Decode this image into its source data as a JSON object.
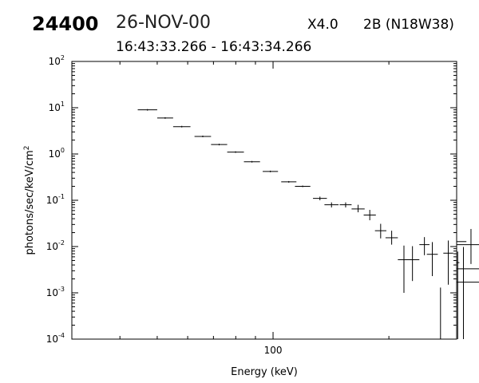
{
  "header": {
    "event_id": "24400",
    "date": "26-NOV-00",
    "goes_class": "X4.0",
    "flare": "2B (N18W38)",
    "time_range": "16:43:33.266 - 16:43:34.266"
  },
  "chart_data": {
    "type": "scatter",
    "style": "error-bars",
    "xlabel": "Energy (keV)",
    "ylabel": "photons/sec/keV/cm",
    "ylabel_superscript": "2",
    "x_scale": "log",
    "y_scale": "log",
    "xlim": [
      30,
      300
    ],
    "ylim": [
      0.0001,
      100
    ],
    "x_tick_labels": [
      {
        "value": 100,
        "label": "100"
      }
    ],
    "y_tick_labels": [
      {
        "value": 0.0001,
        "base": "10",
        "exp": "-4"
      },
      {
        "value": 0.001,
        "base": "10",
        "exp": "-3"
      },
      {
        "value": 0.01,
        "base": "10",
        "exp": "-2"
      },
      {
        "value": 0.1,
        "base": "10",
        "exp": "-1"
      },
      {
        "value": 1,
        "base": "10",
        "exp": "0"
      },
      {
        "value": 10,
        "base": "10",
        "exp": "1"
      },
      {
        "value": 100,
        "base": "10",
        "exp": "2"
      }
    ],
    "grid": false,
    "points": [
      {
        "x0": 44.5,
        "x1": 50.0,
        "y": 9.0,
        "ylo": 9.0,
        "yhi": 9.0
      },
      {
        "x0": 50.0,
        "x1": 55.0,
        "y": 6.0,
        "ylo": 6.0,
        "yhi": 6.0
      },
      {
        "x0": 55.0,
        "x1": 61.0,
        "y": 3.9,
        "ylo": 3.9,
        "yhi": 3.9
      },
      {
        "x0": 62.5,
        "x1": 69.0,
        "y": 2.4,
        "ylo": 2.4,
        "yhi": 2.4
      },
      {
        "x0": 69.0,
        "x1": 76.0,
        "y": 1.6,
        "ylo": 1.6,
        "yhi": 1.6
      },
      {
        "x0": 76.0,
        "x1": 84.0,
        "y": 1.1,
        "ylo": 1.1,
        "yhi": 1.1
      },
      {
        "x0": 84.0,
        "x1": 92.5,
        "y": 0.68,
        "ylo": 0.68,
        "yhi": 0.68
      },
      {
        "x0": 94.0,
        "x1": 103.0,
        "y": 0.42,
        "ylo": 0.42,
        "yhi": 0.42
      },
      {
        "x0": 105.0,
        "x1": 115.0,
        "y": 0.25,
        "ylo": 0.25,
        "yhi": 0.25
      },
      {
        "x0": 114.0,
        "x1": 125.0,
        "y": 0.2,
        "ylo": 0.2,
        "yhi": 0.2
      },
      {
        "x0": 127.0,
        "x1": 138.0,
        "y": 0.11,
        "ylo": 0.1,
        "yhi": 0.12
      },
      {
        "x0": 136.0,
        "x1": 148.0,
        "y": 0.08,
        "ylo": 0.07,
        "yhi": 0.09
      },
      {
        "x0": 149.0,
        "x1": 160.0,
        "y": 0.08,
        "ylo": 0.07,
        "yhi": 0.09
      },
      {
        "x0": 160.0,
        "x1": 173.0,
        "y": 0.065,
        "ylo": 0.055,
        "yhi": 0.08
      },
      {
        "x0": 172.0,
        "x1": 185.0,
        "y": 0.048,
        "ylo": 0.037,
        "yhi": 0.062
      },
      {
        "x0": 184.0,
        "x1": 197.0,
        "y": 0.022,
        "ylo": 0.015,
        "yhi": 0.031
      },
      {
        "x0": 196.0,
        "x1": 211.0,
        "y": 0.0155,
        "ylo": 0.011,
        "yhi": 0.022
      },
      {
        "x0": 211.0,
        "x1": 227.0,
        "y": 0.0052,
        "ylo": 0.001,
        "yhi": 0.0105
      },
      {
        "x0": 221.0,
        "x1": 240.0,
        "y": 0.0052,
        "ylo": 0.0018,
        "yhi": 0.0102
      },
      {
        "x0": 240.0,
        "x1": 255.0,
        "y": 0.011,
        "ylo": 0.0065,
        "yhi": 0.016
      },
      {
        "x0": 251.0,
        "x1": 268.0,
        "y": 0.0068,
        "ylo": 0.0023,
        "yhi": 0.0125
      },
      {
        "x0": 265.0,
        "x1": 280.0,
        "y": 0.0001,
        "ylo": 0.0001,
        "yhi": 0.0013
      },
      {
        "x0": 277.0,
        "x1": 294.0,
        "y": 0.0072,
        "ylo": 0.0015,
        "yhi": 0.0135
      },
      {
        "x0": 294.0,
        "x1": 310.0,
        "y": 0.0025,
        "ylo": 0.0001,
        "yhi": 0.0078
      },
      {
        "x0": 305.0,
        "x1": 320.0,
        "y": 0.0045,
        "ylo": 0.0001,
        "yhi": 0.0098
      },
      {
        "x0": 318.0,
        "x1": 336.0,
        "y": 0.0128,
        "ylo": 0.0042,
        "yhi": 0.024
      },
      {
        "x0": 355.0,
        "x1": 378.0,
        "y": 0.0033,
        "ylo": 0.0001,
        "yhi": 0.0085
      },
      {
        "x0": 376.0,
        "x1": 392.0,
        "y": 0.011,
        "ylo": 0.0025,
        "yhi": 0.0235
      },
      {
        "x0": 392.0,
        "x1": 410.0,
        "y": 0.0017,
        "ylo": 0.0001,
        "yhi": 0.0065
      }
    ]
  }
}
